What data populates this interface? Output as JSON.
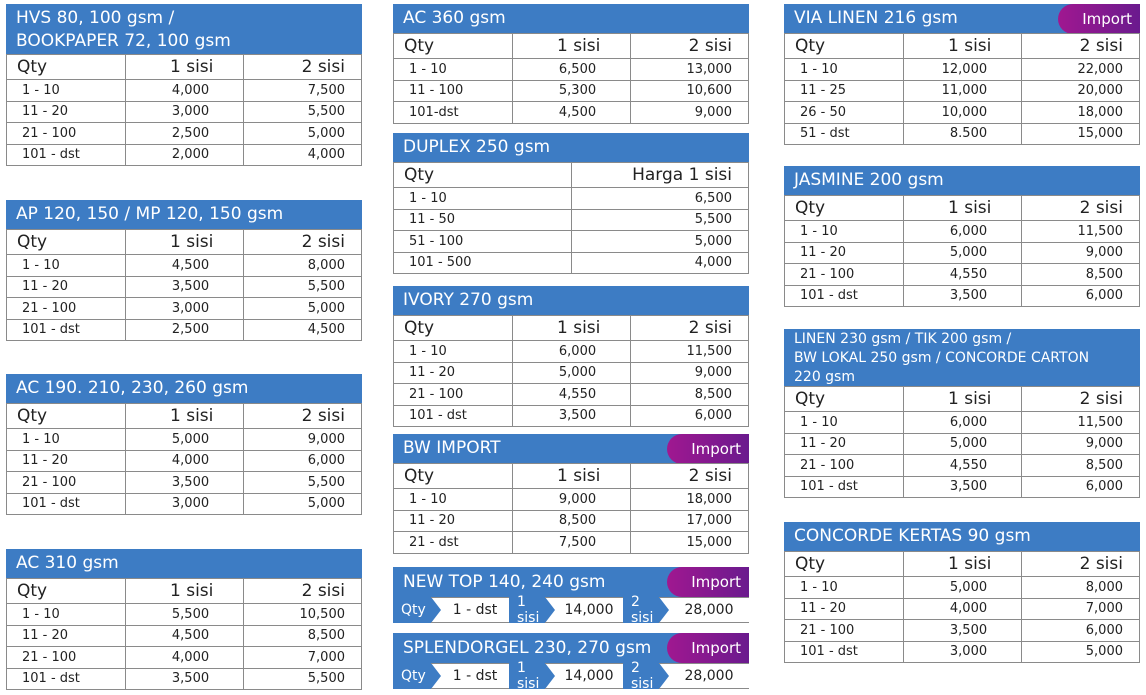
{
  "colors": {
    "header_blue": "#3d7cc4",
    "badge_purple": "#8e1a8e"
  },
  "cards": [
    {
      "id": "hvs",
      "title_lines": [
        "HVS 80, 100 gsm /",
        "BOOKPAPER 72, 100 gsm"
      ],
      "headers": [
        "Qty",
        "1 sisi",
        "2 sisi"
      ],
      "rows": [
        [
          "1 - 10",
          "4,000",
          "7,500"
        ],
        [
          "11 - 20",
          "3,000",
          "5,500"
        ],
        [
          "21 - 100",
          "2,500",
          "5,000"
        ],
        [
          "101 - dst",
          "2,000",
          "4,000"
        ]
      ]
    },
    {
      "id": "ap",
      "title_lines": [
        "AP 120, 150 / MP 120, 150 gsm"
      ],
      "headers": [
        "Qty",
        "1 sisi",
        "2 sisi"
      ],
      "rows": [
        [
          "1 - 10",
          "4,500",
          "8,000"
        ],
        [
          "11 - 20",
          "3,500",
          "5,500"
        ],
        [
          "21 - 100",
          "3,000",
          "5,000"
        ],
        [
          "101 - dst",
          "2,500",
          "4,500"
        ]
      ]
    },
    {
      "id": "ac190",
      "title_lines": [
        "AC 190. 210, 230, 260 gsm"
      ],
      "headers": [
        "Qty",
        "1 sisi",
        "2 sisi"
      ],
      "rows": [
        [
          "1 - 10",
          "5,000",
          "9,000"
        ],
        [
          "11 - 20",
          "4,000",
          "6,000"
        ],
        [
          "21 - 100",
          "3,500",
          "5,500"
        ],
        [
          "101 - dst",
          "3,000",
          "5,000"
        ]
      ]
    },
    {
      "id": "ac310",
      "title_lines": [
        "AC 310 gsm"
      ],
      "headers": [
        "Qty",
        "1 sisi",
        "2 sisi"
      ],
      "rows": [
        [
          "1 - 10",
          "5,500",
          "10,500"
        ],
        [
          "11 - 20",
          "4,500",
          "8,500"
        ],
        [
          "21 - 100",
          "4,000",
          "7,000"
        ],
        [
          "101 - dst",
          "3,500",
          "5,500"
        ]
      ]
    },
    {
      "id": "ac360",
      "title_lines": [
        "AC 360 gsm"
      ],
      "headers": [
        "Qty",
        "1 sisi",
        "2 sisi"
      ],
      "rows": [
        [
          "1 - 10",
          "6,500",
          "13,000"
        ],
        [
          "11 - 100",
          "5,300",
          "10,600"
        ],
        [
          "101-dst",
          "4,500",
          "9,000"
        ]
      ]
    },
    {
      "id": "duplex",
      "title_lines": [
        "DUPLEX 250 gsm"
      ],
      "headers": [
        "Qty",
        "Harga 1 sisi"
      ],
      "rows": [
        [
          "1 - 10",
          "6,500"
        ],
        [
          "11 - 50",
          "5,500"
        ],
        [
          "51 - 100",
          "5,000"
        ],
        [
          "101 - 500",
          "4,000"
        ]
      ]
    },
    {
      "id": "ivory",
      "title_lines": [
        "IVORY 270 gsm"
      ],
      "headers": [
        "Qty",
        "1 sisi",
        "2 sisi"
      ],
      "rows": [
        [
          "1 - 10",
          "6,000",
          "11,500"
        ],
        [
          "11 - 20",
          "5,000",
          "9,000"
        ],
        [
          "21 - 100",
          "4,550",
          "8,500"
        ],
        [
          "101 - dst",
          "3,500",
          "6,000"
        ]
      ]
    },
    {
      "id": "bwimport",
      "title_lines": [
        "BW IMPORT"
      ],
      "badge": "Import",
      "headers": [
        "Qty",
        "1 sisi",
        "2 sisi"
      ],
      "rows": [
        [
          "1 - 10",
          "9,000",
          "18,000"
        ],
        [
          "11 - 20",
          "8,500",
          "17,000"
        ],
        [
          "21 - dst",
          "7,500",
          "15,000"
        ]
      ]
    },
    {
      "id": "vialinen",
      "title_lines": [
        "VIA LINEN 216 gsm"
      ],
      "badge": "Import",
      "headers": [
        "Qty",
        "1 sisi",
        "2 sisi"
      ],
      "rows": [
        [
          "1 - 10",
          "12,000",
          "22,000"
        ],
        [
          "11 - 25",
          "11,000",
          "20,000"
        ],
        [
          "26 - 50",
          "10,000",
          "18,000"
        ],
        [
          "51 - dst",
          "8.500",
          "15,000"
        ]
      ]
    },
    {
      "id": "jasmine",
      "title_lines": [
        "JASMINE 200 gsm"
      ],
      "headers": [
        "Qty",
        "1 sisi",
        "2 sisi"
      ],
      "rows": [
        [
          "1 - 10",
          "6,000",
          "11,500"
        ],
        [
          "11 - 20",
          "5,000",
          "9,000"
        ],
        [
          "21 - 100",
          "4,550",
          "8,500"
        ],
        [
          "101 - dst",
          "3,500",
          "6,000"
        ]
      ]
    },
    {
      "id": "linen",
      "title_lines": [
        "LINEN 230 gsm / TIK 200 gsm /",
        "BW LOKAL 250 gsm / CONCORDE CARTON",
        "220 gsm"
      ],
      "headers": [
        "Qty",
        "1 sisi",
        "2 sisi"
      ],
      "rows": [
        [
          "1 - 10",
          "6,000",
          "11,500"
        ],
        [
          "11 - 20",
          "5,000",
          "9,000"
        ],
        [
          "21 - 100",
          "4,550",
          "8,500"
        ],
        [
          "101 - dst",
          "3,500",
          "6,000"
        ]
      ]
    },
    {
      "id": "concorde",
      "title_lines": [
        "CONCORDE KERTAS 90 gsm"
      ],
      "headers": [
        "Qty",
        "1 sisi",
        "2 sisi"
      ],
      "rows": [
        [
          "1 - 10",
          "5,000",
          "8,000"
        ],
        [
          "11 - 20",
          "4,000",
          "7,000"
        ],
        [
          "21 - 100",
          "3,500",
          "6,000"
        ],
        [
          "101 - dst",
          "3,000",
          "5,000"
        ]
      ]
    }
  ],
  "strips": [
    {
      "id": "newtop",
      "title": "NEW TOP 140, 240 gsm",
      "badge": "Import",
      "qty_label": "Qty",
      "qty": "1 - dst",
      "s1_label": "1 sisi",
      "s1": "14,000",
      "s2_label": "2 sisi",
      "s2": "28,000"
    },
    {
      "id": "splendorgel",
      "title": "SPLENDORGEL 230, 270 gsm",
      "badge": "Import",
      "qty_label": "Qty",
      "qty": "1 - dst",
      "s1_label": "1 sisi",
      "s1": "14,000",
      "s2_label": "2 sisi",
      "s2": "28,000"
    }
  ]
}
